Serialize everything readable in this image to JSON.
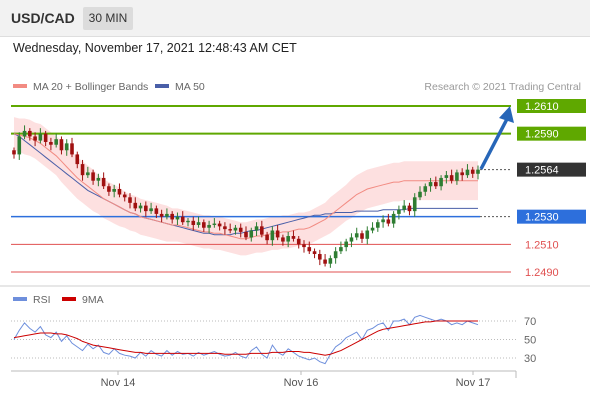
{
  "header": {
    "symbol": "USD/CAD",
    "timeframe": "30 MIN",
    "datetime": "Wednesday, November 17, 2021 12:48:43 AM CET"
  },
  "legend": {
    "bollinger": "MA 20 + Bollinger Bands",
    "ma50": "MA 50",
    "credit": "Research © 2021 Trading Central",
    "rsi": "RSI",
    "ma9": "9MA"
  },
  "colors": {
    "candle_green": "#2e7d32",
    "candle_red": "#a01010",
    "bollinger_fill": "#fde0e0",
    "ma20": "#f28b82",
    "ma50": "#4a5fa8",
    "resistance": "#5fa800",
    "pivot": "#2d6fdc",
    "support": "#e05050",
    "current": "#333333",
    "rsi": "#6e8fdc",
    "rsi_ma": "#cc0000"
  },
  "chart_data": [
    {
      "type": "candlestick",
      "ylim": [
        2485,
        2622
      ],
      "x_labels": [
        "Nov 14",
        "Nov 16",
        "Nov 17"
      ],
      "levels": [
        {
          "value": "1.2610",
          "kind": "resistance"
        },
        {
          "value": "1.2590",
          "kind": "resistance"
        },
        {
          "value": "1.2564",
          "kind": "current"
        },
        {
          "value": "1.2530",
          "kind": "pivot"
        },
        {
          "value": "1.2510",
          "kind": "support"
        },
        {
          "value": "1.2490",
          "kind": "support"
        }
      ],
      "close": [
        2575,
        2588,
        2592,
        2588,
        2585,
        2590,
        2584,
        2582,
        2586,
        2578,
        2583,
        2575,
        2568,
        2560,
        2562,
        2556,
        2558,
        2552,
        2548,
        2550,
        2546,
        2544,
        2540,
        2536,
        2538,
        2534,
        2536,
        2532,
        2530,
        2532,
        2528,
        2530,
        2526,
        2527,
        2524,
        2526,
        2522,
        2524,
        2525,
        2523,
        2521,
        2520,
        2522,
        2519,
        2515,
        2520,
        2523,
        2517,
        2513,
        2520,
        2515,
        2512,
        2516,
        2514,
        2510,
        2508,
        2505,
        2503,
        2499,
        2496,
        2500,
        2505,
        2508,
        2512,
        2515,
        2518,
        2514,
        2520,
        2522,
        2526,
        2528,
        2525,
        2532,
        2535,
        2538,
        2534,
        2544,
        2548,
        2552,
        2555,
        2552,
        2558,
        2560,
        2556,
        2562,
        2560,
        2564,
        2561,
        2564
      ],
      "ma20": [
        2590,
        2589,
        2588,
        2587,
        2585,
        2583,
        2580,
        2577,
        2574,
        2570,
        2566,
        2562,
        2558,
        2555,
        2552,
        2549,
        2546,
        2543,
        2541,
        2539,
        2537,
        2535,
        2533,
        2532,
        2530,
        2529,
        2528,
        2527,
        2526,
        2525,
        2524,
        2524,
        2523,
        2522,
        2521,
        2520,
        2519,
        2519,
        2518,
        2518,
        2517,
        2516,
        2515,
        2514,
        2514,
        2515,
        2516,
        2516,
        2517,
        2518,
        2518,
        2519,
        2519,
        2520,
        2521,
        2521,
        2522,
        2524,
        2526,
        2528,
        2531,
        2534,
        2537,
        2540,
        2543,
        2546,
        2548,
        2550,
        2551,
        2552,
        2553,
        2554,
        2555,
        2555,
        2556,
        2556,
        2556,
        2556,
        2556,
        2556,
        2556,
        2556,
        2556,
        2556,
        2556,
        2556,
        2556,
        2556,
        2556
      ],
      "ma50": [
        2590,
        2588,
        2585,
        2582,
        2579,
        2576,
        2573,
        2570,
        2567,
        2564,
        2561,
        2558,
        2555,
        2552,
        2549,
        2547,
        2545,
        2543,
        2541,
        2539,
        2537,
        2535,
        2533,
        2532,
        2530,
        2529,
        2528,
        2527,
        2526,
        2525,
        2524,
        2523,
        2522,
        2521,
        2520,
        2519,
        2518,
        2518,
        2517,
        2517,
        2517,
        2517,
        2518,
        2518,
        2519,
        2520,
        2520,
        2521,
        2522,
        2523,
        2524,
        2525,
        2526,
        2527,
        2528,
        2529,
        2530,
        2531,
        2531,
        2532,
        2532,
        2533,
        2533,
        2533,
        2533,
        2534,
        2534,
        2534,
        2534,
        2534,
        2535,
        2535,
        2535,
        2535,
        2535,
        2536,
        2536,
        2536,
        2536,
        2536,
        2536,
        2536,
        2536,
        2536,
        2536,
        2536,
        2536,
        2536,
        2536
      ],
      "bb_width": [
        12,
        12,
        13,
        13,
        13,
        14,
        14,
        14,
        14,
        15,
        15,
        15,
        15,
        15,
        15,
        15,
        14,
        14,
        14,
        14,
        14,
        13,
        13,
        13,
        13,
        13,
        13,
        13,
        13,
        13,
        12,
        12,
        12,
        12,
        12,
        12,
        12,
        12,
        12,
        12,
        12,
        12,
        12,
        12,
        12,
        12,
        12,
        12,
        12,
        12,
        12,
        12,
        12,
        12,
        12,
        12,
        12,
        12,
        12,
        12,
        13,
        13,
        13,
        13,
        14,
        14,
        14,
        14,
        14,
        14,
        14,
        14,
        14,
        14,
        14,
        14,
        14,
        14,
        14,
        14,
        14,
        14,
        14,
        14,
        14,
        14,
        14,
        14,
        14
      ]
    },
    {
      "type": "line",
      "ylim": [
        20,
        80
      ],
      "y_ticks": [
        "70",
        "50",
        "30"
      ],
      "rsi": [
        50,
        60,
        68,
        62,
        58,
        64,
        55,
        52,
        58,
        48,
        54,
        46,
        42,
        38,
        45,
        40,
        44,
        36,
        34,
        40,
        35,
        33,
        32,
        30,
        36,
        32,
        38,
        34,
        32,
        38,
        33,
        37,
        34,
        35,
        32,
        36,
        33,
        35,
        37,
        34,
        32,
        33,
        36,
        32,
        30,
        38,
        42,
        34,
        30,
        44,
        36,
        33,
        40,
        36,
        32,
        30,
        28,
        30,
        26,
        24,
        34,
        42,
        46,
        52,
        55,
        58,
        50,
        60,
        62,
        66,
        68,
        60,
        70,
        70,
        72,
        66,
        74,
        76,
        74,
        72,
        70,
        72,
        70,
        66,
        68,
        66,
        70,
        68,
        66
      ],
      "rsi_ma": [
        52,
        53,
        54,
        55,
        56,
        57,
        57,
        57,
        56,
        56,
        55,
        53,
        51,
        48,
        46,
        44,
        43,
        42,
        41,
        40,
        39,
        38,
        37,
        36,
        36,
        35,
        35,
        35,
        35,
        35,
        35,
        35,
        35,
        35,
        35,
        35,
        35,
        35,
        35,
        35,
        34,
        34,
        34,
        34,
        34,
        35,
        35,
        35,
        35,
        36,
        36,
        36,
        37,
        37,
        37,
        36,
        36,
        35,
        34,
        33,
        34,
        36,
        38,
        41,
        44,
        47,
        50,
        53,
        56,
        59,
        61,
        62,
        63,
        64,
        65,
        66,
        67,
        68,
        69,
        69,
        70,
        70,
        70,
        70,
        70,
        70,
        70,
        70,
        70
      ]
    }
  ]
}
